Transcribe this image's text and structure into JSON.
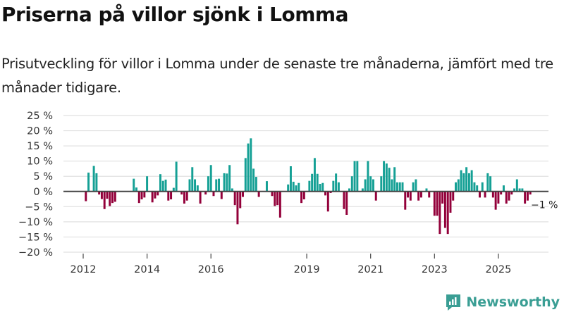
{
  "header": {
    "title": "Priserna på villor sjönk i Lomma",
    "subtitle": "Prisutveckling för villor i Lomma under de senaste tre månaderna, jämfört med tre månader tidigare."
  },
  "brand": {
    "name": "Newsworthy",
    "icon": "bar-chart-logo-icon",
    "color": "#3a9e94"
  },
  "colors": {
    "positive": "#15a095",
    "negative": "#93003a",
    "zero_line": "#444444",
    "grid": "#e0e0e0"
  },
  "chart_data": {
    "type": "bar",
    "title": "Priserna på villor sjönk i Lomma",
    "subtitle": "Prisutveckling för villor i Lomma under de senaste tre månaderna, jämfört med tre månader tidigare.",
    "xlabel": "",
    "ylabel": "",
    "ylim": [
      -20,
      25
    ],
    "yticks": [
      25,
      20,
      15,
      10,
      5,
      0,
      -5,
      -10,
      -15,
      -20
    ],
    "ytick_labels": [
      "25 %",
      "20 %",
      "15 %",
      "10 %",
      "5 %",
      "0 %",
      "−5 %",
      "−10 %",
      "−15 %",
      "−20 %"
    ],
    "xticks": [
      "2012",
      "2014",
      "2016",
      "2019",
      "2021",
      "2023",
      "2025"
    ],
    "grid": true,
    "legend": "none",
    "x_start": "2012-01",
    "frequency": "monthly",
    "values": [
      null,
      -3.2,
      6.2,
      null,
      8.4,
      6.0,
      -1.0,
      -2.5,
      -5.8,
      -2.4,
      -4.8,
      -3.8,
      -3.4,
      null,
      null,
      null,
      null,
      null,
      null,
      4.2,
      1.3,
      -3.8,
      -2.6,
      -2.0,
      5.0,
      null,
      -3.6,
      -2.3,
      -1.3,
      5.7,
      3.5,
      3.9,
      -3.0,
      -2.6,
      1.2,
      9.8,
      null,
      -1.0,
      -4.0,
      -3.0,
      4.0,
      8.0,
      4.0,
      2.0,
      -4.0,
      null,
      -1.0,
      5.0,
      8.7,
      -1.5,
      4.0,
      4.2,
      -2.5,
      6.0,
      5.9,
      8.7,
      1.0,
      -4.5,
      -10.8,
      -5.5,
      -1.8,
      11.0,
      15.8,
      17.5,
      7.5,
      4.8,
      -1.8,
      null,
      null,
      3.4,
      null,
      -1.5,
      -4.8,
      -4.5,
      -8.6,
      null,
      null,
      2.3,
      8.3,
      3.2,
      2.0,
      2.8,
      -3.8,
      -2.6,
      0.2,
      3.5,
      5.8,
      11.0,
      5.8,
      2.5,
      2.8,
      -1.3,
      -6.6,
      -0.5,
      3.5,
      5.9,
      3.0,
      null,
      -5.8,
      -7.7,
      1.0,
      5.0,
      10.0,
      10.0,
      null,
      1.0,
      4.0,
      10.0,
      5.0,
      4.0,
      -3.0,
      null,
      5.0,
      10.0,
      9.2,
      7.8,
      4.0,
      8.0,
      3.0,
      3.0,
      3.0,
      -6.0,
      -2.0,
      -3.0,
      3.0,
      4.0,
      -3.0,
      -2.0,
      null,
      1.0,
      -2.0,
      null,
      -8.0,
      -8.0,
      -14.0,
      -4.0,
      -12.0,
      -14.0,
      -7.0,
      -3.0,
      3.0,
      4.0,
      7.0,
      6.0,
      8.0,
      6.0,
      7.0,
      3.0,
      2.0,
      -2.0,
      3.0,
      -2.0,
      6.0,
      5.0,
      -2.0,
      -6.0,
      -4.0,
      -1.0,
      2.0,
      -4.0,
      -3.0,
      -1.0,
      1.0,
      4.0,
      1.0,
      1.0,
      -4.0,
      -3.0,
      -1.0
    ],
    "annotations": [
      {
        "text": "−1 %",
        "target": "last value",
        "value": -1
      }
    ]
  }
}
